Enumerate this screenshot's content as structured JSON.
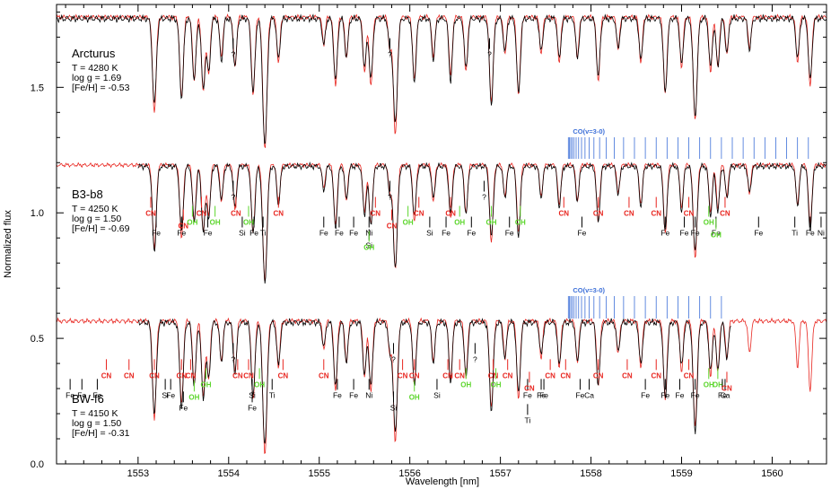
{
  "chart_data": {
    "type": "line",
    "xlabel": "Wavelength [nm]",
    "ylabel": "Normalized flux",
    "xlim": [
      1552.1,
      1560.6
    ],
    "ylim": [
      0.0,
      1.83
    ],
    "x_ticks": [
      1553,
      1554,
      1555,
      1556,
      1557,
      1558,
      1559,
      1560
    ],
    "y_ticks": [
      0.0,
      0.5,
      1.0,
      1.5
    ],
    "y_tick_labels": [
      "0.0",
      "0.5",
      "1.0",
      "1.5"
    ],
    "colors": {
      "observed": "#000000",
      "synthetic": "#e8251f",
      "CN": "#e8251f",
      "OH": "#5cd62c",
      "CO": "#3c6fd8",
      "atomic": "#000000"
    },
    "lines": [
      {
        "x": 1553.18,
        "depth": 0.42
      },
      {
        "x": 1553.48,
        "depth": 0.36
      },
      {
        "x": 1553.62,
        "depth": 0.28
      },
      {
        "x": 1553.72,
        "depth": 0.33
      },
      {
        "x": 1553.78,
        "depth": 0.25
      },
      {
        "x": 1553.92,
        "depth": 0.18
      },
      {
        "x": 1554.07,
        "depth": 0.22
      },
      {
        "x": 1554.27,
        "depth": 0.34
      },
      {
        "x": 1554.4,
        "depth": 0.58
      },
      {
        "x": 1554.55,
        "depth": 0.2
      },
      {
        "x": 1555.05,
        "depth": 0.12
      },
      {
        "x": 1555.18,
        "depth": 0.3
      },
      {
        "x": 1555.3,
        "depth": 0.18
      },
      {
        "x": 1555.5,
        "depth": 0.24
      },
      {
        "x": 1555.57,
        "depth": 0.3
      },
      {
        "x": 1555.78,
        "depth": 0.14
      },
      {
        "x": 1555.84,
        "depth": 0.52
      },
      {
        "x": 1556.05,
        "depth": 0.28
      },
      {
        "x": 1556.26,
        "depth": 0.18
      },
      {
        "x": 1556.45,
        "depth": 0.26
      },
      {
        "x": 1556.62,
        "depth": 0.24
      },
      {
        "x": 1556.9,
        "depth": 0.38
      },
      {
        "x": 1557.05,
        "depth": 0.16
      },
      {
        "x": 1557.2,
        "depth": 0.34
      },
      {
        "x": 1557.45,
        "depth": 0.16
      },
      {
        "x": 1557.65,
        "depth": 0.2
      },
      {
        "x": 1557.85,
        "depth": 0.18
      },
      {
        "x": 1558.08,
        "depth": 0.28
      },
      {
        "x": 1558.3,
        "depth": 0.14
      },
      {
        "x": 1558.55,
        "depth": 0.2
      },
      {
        "x": 1558.82,
        "depth": 0.34
      },
      {
        "x": 1559.0,
        "depth": 0.22
      },
      {
        "x": 1559.15,
        "depth": 0.46
      },
      {
        "x": 1559.32,
        "depth": 0.24
      },
      {
        "x": 1559.4,
        "depth": 0.22
      },
      {
        "x": 1559.5,
        "depth": 0.16
      },
      {
        "x": 1559.75,
        "depth": 0.14
      },
      {
        "x": 1560.28,
        "depth": 0.2
      },
      {
        "x": 1560.42,
        "depth": 0.3
      }
    ],
    "series": [
      {
        "star": "Arcturus",
        "name_lines": [
          "Arcturus",
          "T = 4280 K",
          "log g = 1.69",
          "[Fe/H] = -0.53"
        ],
        "continuum": 1.79,
        "scale": 0.9
      },
      {
        "star": "B3-b8",
        "name_lines": [
          "B3-b8",
          "T = 4250 K",
          "log g = 1.50",
          "[Fe/H] = -0.69"
        ],
        "continuum": 1.2,
        "scale": 0.8,
        "co_label": "CO(v=3-0)"
      },
      {
        "star": "BW-f6",
        "name_lines": [
          "BW-f6",
          "T = 4150 K",
          "log g = 1.50",
          "[Fe/H] = -0.31"
        ],
        "continuum": 0.58,
        "scale": 0.92,
        "co_label": "CO(v=3-0)"
      }
    ],
    "co_bandhead": {
      "start": 1557.75,
      "end_top": 1560.5,
      "end_bottom": 1559.45
    },
    "annotations": [
      {
        "panel": 0,
        "x": 1554.05,
        "text": "?",
        "color": "black"
      },
      {
        "panel": 0,
        "x": 1555.78,
        "text": "?",
        "color": "black"
      },
      {
        "panel": 0,
        "x": 1556.88,
        "text": "?",
        "color": "black"
      },
      {
        "panel": 1,
        "x": 1553.14,
        "text": "CN",
        "color": "red"
      },
      {
        "panel": 1,
        "x": 1553.2,
        "text": "Fe",
        "color": "black"
      },
      {
        "panel": 1,
        "x": 1553.48,
        "text": "Fe",
        "color": "black"
      },
      {
        "panel": 1,
        "x": 1553.5,
        "text": "CN",
        "color": "red"
      },
      {
        "panel": 1,
        "x": 1553.6,
        "text": "OH",
        "color": "green"
      },
      {
        "panel": 1,
        "x": 1553.7,
        "text": "CN",
        "color": "red"
      },
      {
        "panel": 1,
        "x": 1553.77,
        "text": "Fe",
        "color": "black"
      },
      {
        "panel": 1,
        "x": 1553.85,
        "text": "OH",
        "color": "green"
      },
      {
        "panel": 1,
        "x": 1554.05,
        "text": "?",
        "color": "black"
      },
      {
        "panel": 1,
        "x": 1554.08,
        "text": "CN",
        "color": "red"
      },
      {
        "panel": 1,
        "x": 1554.22,
        "text": "OH",
        "color": "green"
      },
      {
        "panel": 1,
        "x": 1554.15,
        "text": "Si",
        "color": "black"
      },
      {
        "panel": 1,
        "x": 1554.28,
        "text": "Fe",
        "color": "black"
      },
      {
        "panel": 1,
        "x": 1554.38,
        "text": "Ti",
        "color": "black"
      },
      {
        "panel": 1,
        "x": 1554.55,
        "text": "CN",
        "color": "red"
      },
      {
        "panel": 1,
        "x": 1555.05,
        "text": "Fe",
        "color": "black"
      },
      {
        "panel": 1,
        "x": 1555.22,
        "text": "Fe",
        "color": "black"
      },
      {
        "panel": 1,
        "x": 1555.38,
        "text": "Fe",
        "color": "black"
      },
      {
        "panel": 1,
        "x": 1555.55,
        "text": "Ni",
        "color": "black"
      },
      {
        "panel": 1,
        "x": 1555.62,
        "text": "CN",
        "color": "red"
      },
      {
        "panel": 1,
        "x": 1555.55,
        "text": "Si",
        "color": "black"
      },
      {
        "panel": 1,
        "x": 1555.55,
        "text": "OH",
        "color": "green"
      },
      {
        "panel": 1,
        "x": 1555.78,
        "text": "?",
        "color": "black"
      },
      {
        "panel": 1,
        "x": 1555.8,
        "text": "CN",
        "color": "red"
      },
      {
        "panel": 1,
        "x": 1555.98,
        "text": "OH",
        "color": "green"
      },
      {
        "panel": 1,
        "x": 1556.1,
        "text": "CN",
        "color": "red"
      },
      {
        "panel": 1,
        "x": 1556.22,
        "text": "Si",
        "color": "black"
      },
      {
        "panel": 1,
        "x": 1556.4,
        "text": "Fe",
        "color": "black"
      },
      {
        "panel": 1,
        "x": 1556.45,
        "text": "CN",
        "color": "red"
      },
      {
        "panel": 1,
        "x": 1556.55,
        "text": "OH",
        "color": "green"
      },
      {
        "panel": 1,
        "x": 1556.68,
        "text": "Fe",
        "color": "black"
      },
      {
        "panel": 1,
        "x": 1556.82,
        "text": "?",
        "color": "black"
      },
      {
        "panel": 1,
        "x": 1556.9,
        "text": "OH",
        "color": "green"
      },
      {
        "panel": 1,
        "x": 1557.1,
        "text": "Fe",
        "color": "black"
      },
      {
        "panel": 1,
        "x": 1557.22,
        "text": "OH",
        "color": "green"
      },
      {
        "panel": 1,
        "x": 1557.7,
        "text": "CN",
        "color": "red"
      },
      {
        "panel": 1,
        "x": 1557.9,
        "text": "Fe",
        "color": "black"
      },
      {
        "panel": 1,
        "x": 1558.08,
        "text": "CN",
        "color": "red"
      },
      {
        "panel": 1,
        "x": 1558.42,
        "text": "CN",
        "color": "red"
      },
      {
        "panel": 1,
        "x": 1558.72,
        "text": "CN",
        "color": "red"
      },
      {
        "panel": 1,
        "x": 1558.82,
        "text": "Fe",
        "color": "black"
      },
      {
        "panel": 1,
        "x": 1559.03,
        "text": "Fe",
        "color": "black"
      },
      {
        "panel": 1,
        "x": 1559.08,
        "text": "CN",
        "color": "red"
      },
      {
        "panel": 1,
        "x": 1559.15,
        "text": "Fe",
        "color": "black"
      },
      {
        "panel": 1,
        "x": 1559.3,
        "text": "OH",
        "color": "green"
      },
      {
        "panel": 1,
        "x": 1559.38,
        "text": "Fe",
        "color": "black"
      },
      {
        "panel": 1,
        "x": 1559.38,
        "text": "OH",
        "color": "green"
      },
      {
        "panel": 1,
        "x": 1559.48,
        "text": "CN",
        "color": "red"
      },
      {
        "panel": 1,
        "x": 1559.85,
        "text": "Fe",
        "color": "black"
      },
      {
        "panel": 1,
        "x": 1560.25,
        "text": "Ti",
        "color": "black"
      },
      {
        "panel": 1,
        "x": 1560.42,
        "text": "Fe",
        "color": "black"
      },
      {
        "panel": 1,
        "x": 1560.54,
        "text": "Ni",
        "color": "black"
      },
      {
        "panel": 2,
        "x": 1552.25,
        "text": "Fe",
        "color": "black"
      },
      {
        "panel": 2,
        "x": 1552.38,
        "text": "Fe",
        "color": "black"
      },
      {
        "panel": 2,
        "x": 1552.55,
        "text": "Fe",
        "color": "black"
      },
      {
        "panel": 2,
        "x": 1552.65,
        "text": "CN",
        "color": "red"
      },
      {
        "panel": 2,
        "x": 1552.9,
        "text": "CN",
        "color": "red"
      },
      {
        "panel": 2,
        "x": 1553.18,
        "text": "CN",
        "color": "red"
      },
      {
        "panel": 2,
        "x": 1553.3,
        "text": "Si",
        "color": "black"
      },
      {
        "panel": 2,
        "x": 1553.36,
        "text": "Fe",
        "color": "black"
      },
      {
        "panel": 2,
        "x": 1553.48,
        "text": "CN",
        "color": "red"
      },
      {
        "panel": 2,
        "x": 1553.5,
        "text": "Fe",
        "color": "black"
      },
      {
        "panel": 2,
        "x": 1553.58,
        "text": "CN",
        "color": "red"
      },
      {
        "panel": 2,
        "x": 1553.62,
        "text": "OH",
        "color": "green"
      },
      {
        "panel": 2,
        "x": 1553.75,
        "text": "OH",
        "color": "green"
      },
      {
        "panel": 2,
        "x": 1554.05,
        "text": "?",
        "color": "black"
      },
      {
        "panel": 2,
        "x": 1554.1,
        "text": "CN",
        "color": "red"
      },
      {
        "panel": 2,
        "x": 1554.22,
        "text": "CN",
        "color": "red"
      },
      {
        "panel": 2,
        "x": 1554.26,
        "text": "Si",
        "color": "black"
      },
      {
        "panel": 2,
        "x": 1554.34,
        "text": "OH",
        "color": "green"
      },
      {
        "panel": 2,
        "x": 1554.26,
        "text": "Fe",
        "color": "black"
      },
      {
        "panel": 2,
        "x": 1554.48,
        "text": "Ti",
        "color": "black"
      },
      {
        "panel": 2,
        "x": 1554.6,
        "text": "CN",
        "color": "red"
      },
      {
        "panel": 2,
        "x": 1555.05,
        "text": "CN",
        "color": "red"
      },
      {
        "panel": 2,
        "x": 1555.2,
        "text": "Fe",
        "color": "black"
      },
      {
        "panel": 2,
        "x": 1555.38,
        "text": "Fe",
        "color": "black"
      },
      {
        "panel": 2,
        "x": 1555.55,
        "text": "Ni",
        "color": "black"
      },
      {
        "panel": 2,
        "x": 1555.82,
        "text": "?",
        "color": "black"
      },
      {
        "panel": 2,
        "x": 1555.82,
        "text": "Si",
        "color": "black"
      },
      {
        "panel": 2,
        "x": 1555.92,
        "text": "CN",
        "color": "red"
      },
      {
        "panel": 2,
        "x": 1556.05,
        "text": "CN",
        "color": "red"
      },
      {
        "panel": 2,
        "x": 1556.05,
        "text": "OH",
        "color": "green"
      },
      {
        "panel": 2,
        "x": 1556.3,
        "text": "Si",
        "color": "black"
      },
      {
        "panel": 2,
        "x": 1556.42,
        "text": "CN",
        "color": "red"
      },
      {
        "panel": 2,
        "x": 1556.55,
        "text": "CN",
        "color": "red"
      },
      {
        "panel": 2,
        "x": 1556.62,
        "text": "OH",
        "color": "green"
      },
      {
        "panel": 2,
        "x": 1556.72,
        "text": "?",
        "color": "black"
      },
      {
        "panel": 2,
        "x": 1556.92,
        "text": "CN",
        "color": "red"
      },
      {
        "panel": 2,
        "x": 1556.95,
        "text": "OH",
        "color": "green"
      },
      {
        "panel": 2,
        "x": 1557.08,
        "text": "CN",
        "color": "red"
      },
      {
        "panel": 2,
        "x": 1557.3,
        "text": "Fe",
        "color": "black"
      },
      {
        "panel": 2,
        "x": 1557.32,
        "text": "CN",
        "color": "red"
      },
      {
        "panel": 2,
        "x": 1557.3,
        "text": "Ti",
        "color": "black"
      },
      {
        "panel": 2,
        "x": 1557.45,
        "text": "Fe",
        "color": "black"
      },
      {
        "panel": 2,
        "x": 1557.48,
        "text": "Fe",
        "color": "black"
      },
      {
        "panel": 2,
        "x": 1557.55,
        "text": "CN",
        "color": "red"
      },
      {
        "panel": 2,
        "x": 1557.72,
        "text": "CN",
        "color": "red"
      },
      {
        "panel": 2,
        "x": 1557.88,
        "text": "Fe",
        "color": "black"
      },
      {
        "panel": 2,
        "x": 1557.98,
        "text": "Ca",
        "color": "black"
      },
      {
        "panel": 2,
        "x": 1558.08,
        "text": "CN",
        "color": "red"
      },
      {
        "panel": 2,
        "x": 1558.4,
        "text": "CN",
        "color": "red"
      },
      {
        "panel": 2,
        "x": 1558.6,
        "text": "Fe",
        "color": "black"
      },
      {
        "panel": 2,
        "x": 1558.72,
        "text": "CN",
        "color": "red"
      },
      {
        "panel": 2,
        "x": 1558.82,
        "text": "Fe",
        "color": "black"
      },
      {
        "panel": 2,
        "x": 1558.98,
        "text": "Fe",
        "color": "black"
      },
      {
        "panel": 2,
        "x": 1559.08,
        "text": "CN",
        "color": "red"
      },
      {
        "panel": 2,
        "x": 1559.15,
        "text": "Fe",
        "color": "black"
      },
      {
        "panel": 2,
        "x": 1559.3,
        "text": "OH",
        "color": "green"
      },
      {
        "panel": 2,
        "x": 1559.4,
        "text": "OH",
        "color": "green"
      },
      {
        "panel": 2,
        "x": 1559.45,
        "text": "Fe",
        "color": "black"
      },
      {
        "panel": 2,
        "x": 1559.48,
        "text": "Ca",
        "color": "black"
      },
      {
        "panel": 2,
        "x": 1559.5,
        "text": "CN",
        "color": "red"
      }
    ]
  }
}
